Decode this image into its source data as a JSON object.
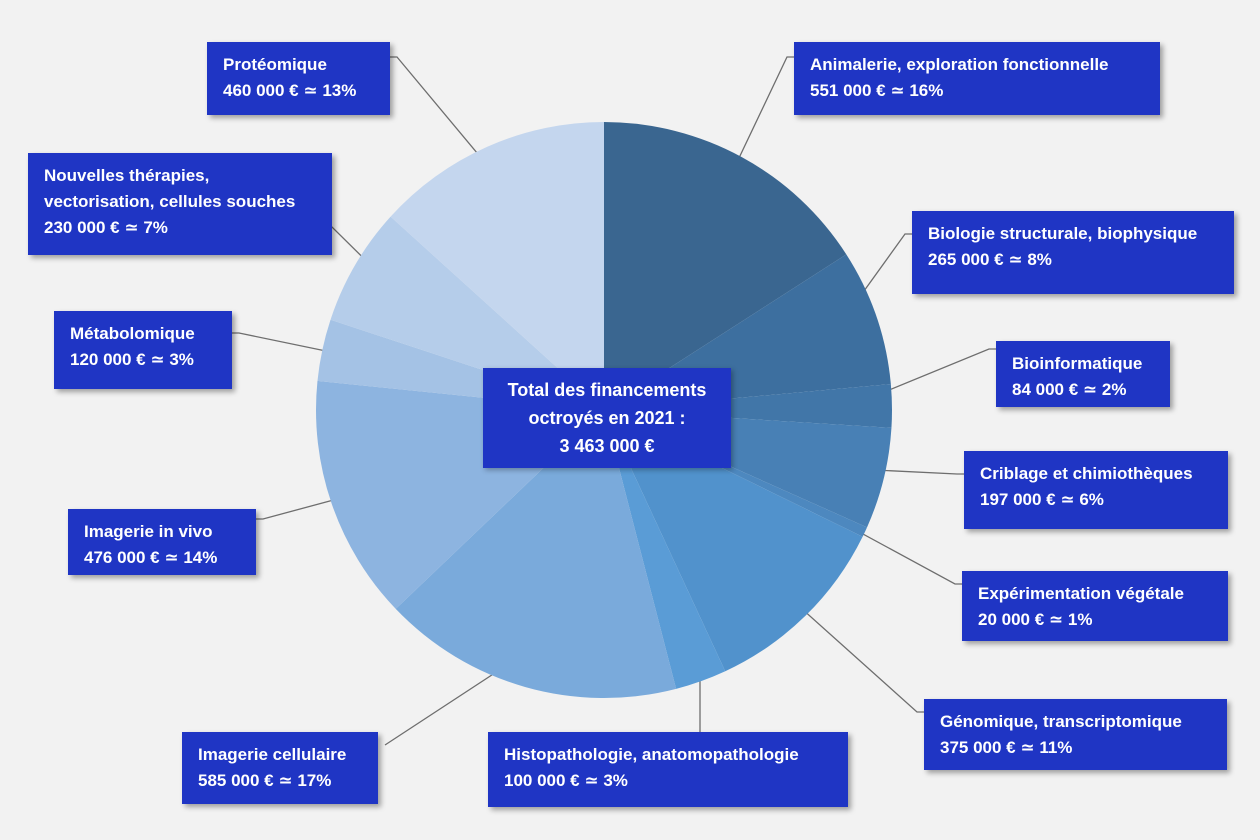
{
  "chart_data": {
    "type": "pie",
    "center_label": [
      "Total des financements",
      "octroyés en 2021 :",
      "3 463 000 €"
    ],
    "slices": [
      {
        "lines": [
          "Animalerie, exploration fonctionnelle"
        ],
        "amount": "551 000 €",
        "pct": "16%",
        "value": 551000,
        "color": "#3a6690"
      },
      {
        "lines": [
          "Biologie structurale, biophysique"
        ],
        "amount": "265 000 €",
        "pct": "8%",
        "value": 265000,
        "color": "#3d6f9f"
      },
      {
        "lines": [
          "Bioinformatique"
        ],
        "amount": "84 000 €",
        "pct": "2%",
        "value": 84000,
        "color": "#4176a8"
      },
      {
        "lines": [
          "Criblage et chimiothèques"
        ],
        "amount": "197 000 €",
        "pct": "6%",
        "value": 197000,
        "color": "#4880b5"
      },
      {
        "lines": [
          "Expérimentation végétale"
        ],
        "amount": "20 000 €",
        "pct": "1%",
        "value": 20000,
        "color": "#4d88bf"
      },
      {
        "lines": [
          "Génomique, transcriptomique"
        ],
        "amount": "375 000 €",
        "pct": "11%",
        "value": 375000,
        "color": "#5192cc"
      },
      {
        "lines": [
          "Histopathologie, anatomopathologie"
        ],
        "amount": "100 000 €",
        "pct": "3%",
        "value": 100000,
        "color": "#5a9cd6"
      },
      {
        "lines": [
          "Imagerie cellulaire"
        ],
        "amount": "585 000 €",
        "pct": "17%",
        "value": 585000,
        "color": "#7aaadb"
      },
      {
        "lines": [
          "Imagerie in vivo"
        ],
        "amount": "476 000 €",
        "pct": "14%",
        "value": 476000,
        "color": "#8db4e0"
      },
      {
        "lines": [
          "Métabolomique"
        ],
        "amount": "120 000 €",
        "pct": "3%",
        "value": 120000,
        "color": "#a4c2e5"
      },
      {
        "lines": [
          "Nouvelles thérapies,",
          "vectorisation, cellules souches"
        ],
        "amount": "230 000 €",
        "pct": "7%",
        "value": 230000,
        "color": "#b5cdea"
      },
      {
        "lines": [
          "Protéomique"
        ],
        "amount": "460 000 €",
        "pct": "13%",
        "value": 460000,
        "color": "#c4d6ee"
      }
    ]
  }
}
